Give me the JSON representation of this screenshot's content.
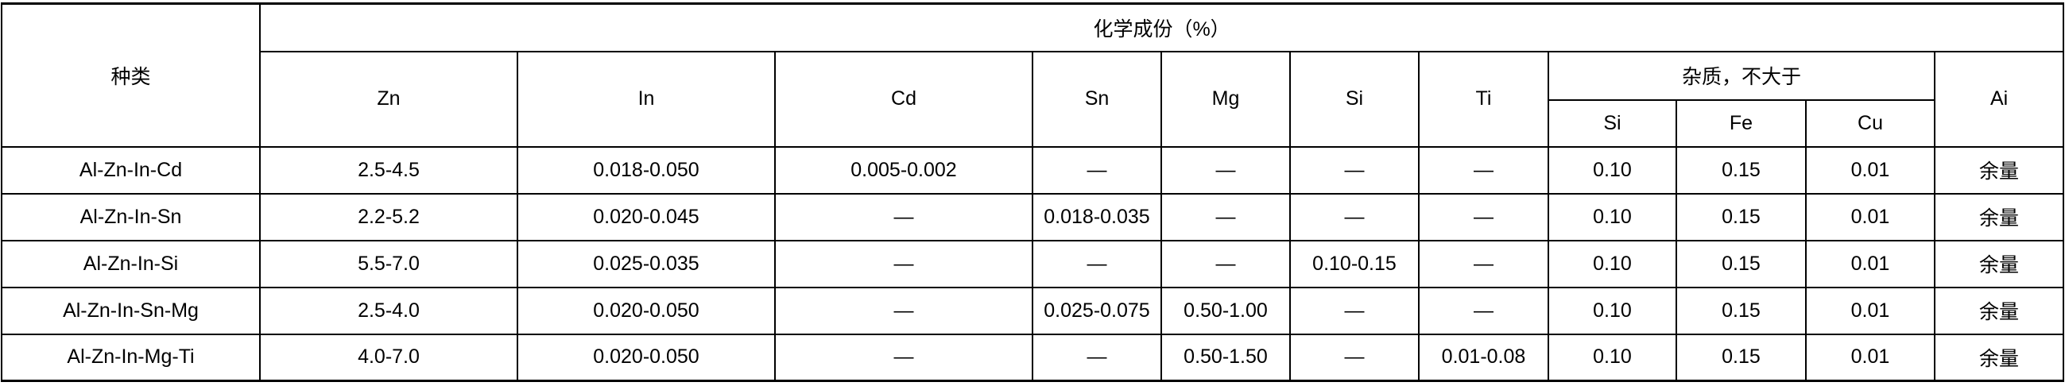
{
  "header": {
    "type_label": "种类",
    "composition_label": "化学成份（%）",
    "impurity_label": "杂质，不大于",
    "columns": [
      "Zn",
      "In",
      "Cd",
      "Sn",
      "Mg",
      "Si",
      "Ti"
    ],
    "impurity_columns": [
      "Si",
      "Fe",
      "Cu"
    ],
    "balance_column": "Ai"
  },
  "rows": [
    {
      "type": "Al-Zn-In-Cd",
      "cells": [
        "2.5-4.5",
        "0.018-0.050",
        "0.005-0.002",
        "—",
        "—",
        "—",
        "—",
        "0.10",
        "0.15",
        "0.01",
        "余量"
      ]
    },
    {
      "type": "Al-Zn-In-Sn",
      "cells": [
        "2.2-5.2",
        "0.020-0.045",
        "—",
        "0.018-0.035",
        "—",
        "—",
        "—",
        "0.10",
        "0.15",
        "0.01",
        "余量"
      ]
    },
    {
      "type": "Al-Zn-In-Si",
      "cells": [
        "5.5-7.0",
        "0.025-0.035",
        "—",
        "—",
        "—",
        "0.10-0.15",
        "—",
        "0.10",
        "0.15",
        "0.01",
        "余量"
      ]
    },
    {
      "type": "Al-Zn-In-Sn-Mg",
      "cells": [
        "2.5-4.0",
        "0.020-0.050",
        "—",
        "0.025-0.075",
        "0.50-1.00",
        "—",
        "—",
        "0.10",
        "0.15",
        "0.01",
        "余量"
      ]
    },
    {
      "type": "Al-Zn-In-Mg-Ti",
      "cells": [
        "4.0-7.0",
        "0.020-0.050",
        "—",
        "—",
        "0.50-1.50",
        "—",
        "0.01-0.08",
        "0.10",
        "0.15",
        "0.01",
        "余量"
      ]
    }
  ]
}
